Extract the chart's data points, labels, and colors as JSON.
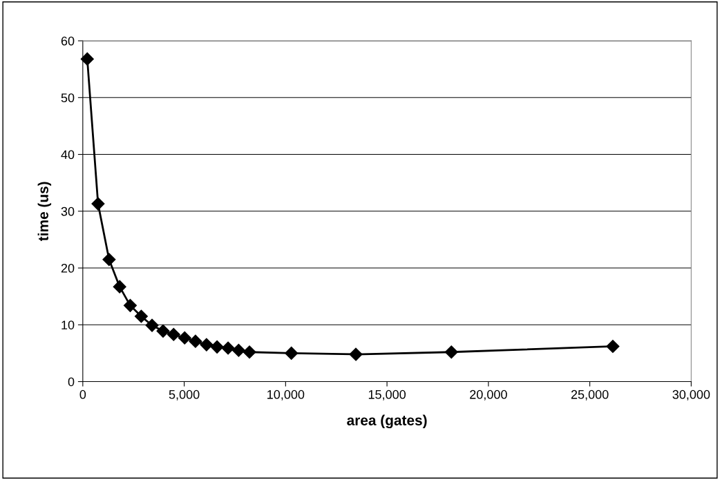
{
  "chart_data": {
    "type": "line",
    "xlabel": "area (gates)",
    "ylabel": "time (us)",
    "x": [
      220,
      752,
      1296,
      1817,
      2338,
      2882,
      3414,
      3958,
      4479,
      5023,
      5556,
      6100,
      6620,
      7164,
      7685,
      8218,
      10285,
      13464,
      18175,
      26136
    ],
    "series": [
      {
        "color": "#000000",
        "values": [
          56.8,
          31.3,
          21.5,
          16.7,
          13.4,
          11.5,
          9.9,
          8.9,
          8.3,
          7.7,
          7.1,
          6.5,
          6.1,
          5.9,
          5.5,
          5.2,
          5.0,
          4.8,
          5.2,
          6.2
        ]
      }
    ],
    "xlim": [
      0,
      30000
    ],
    "xticks": [
      {
        "value": 0,
        "label": "0"
      },
      {
        "value": 5000,
        "label": "5,000"
      },
      {
        "value": 10000,
        "label": "10,000"
      },
      {
        "value": 15000,
        "label": "15,000"
      },
      {
        "value": 20000,
        "label": "20,000"
      },
      {
        "value": 25000,
        "label": "25,000"
      },
      {
        "value": 30000,
        "label": "30,000"
      }
    ],
    "ylim": [
      0,
      60
    ],
    "yticks": [
      0,
      10,
      20,
      30,
      40,
      50,
      60
    ],
    "grid": "y",
    "legend": false,
    "marker": "diamond",
    "line_style": "solid"
  }
}
